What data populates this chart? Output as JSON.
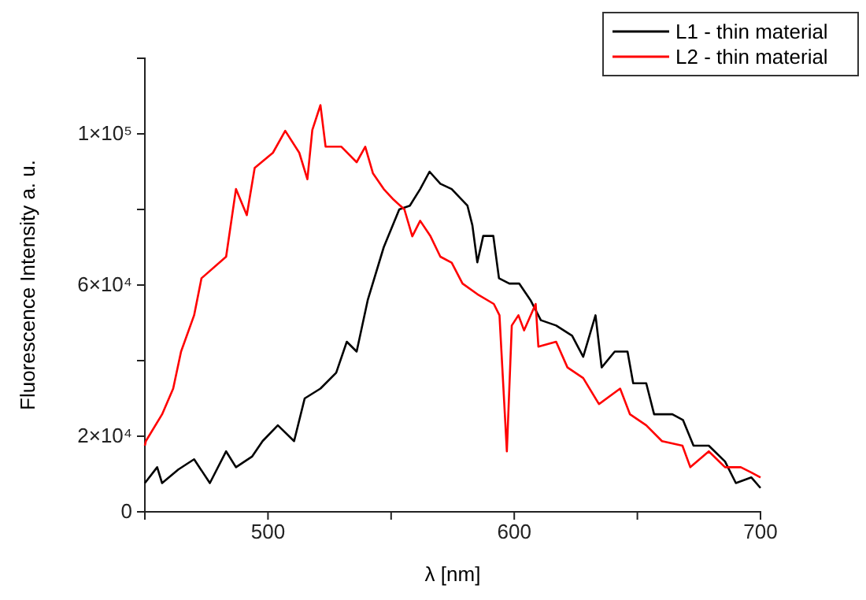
{
  "chart_data": {
    "type": "line",
    "xlabel": "λ [nm]",
    "ylabel": "Fluorescence Intensity a. u.",
    "xlim": [
      450,
      700
    ],
    "ylim": [
      0,
      120000
    ],
    "xticks": [
      500,
      {
        "value": 550,
        "label": null
      },
      600,
      {
        "value": 650,
        "label": null
      },
      700
    ],
    "yticks": [
      0,
      {
        "value": 20000,
        "label": "2×10⁴"
      },
      {
        "value": 40000,
        "label": null
      },
      {
        "value": 60000,
        "label": "6×10⁴"
      },
      {
        "value": 80000,
        "label": null
      },
      {
        "value": 100000,
        "label": "1×10⁵"
      }
    ],
    "grid": false,
    "legend": "top right",
    "marker": "none",
    "line_style": "solid",
    "series": [
      {
        "name": "L1 - thin material",
        "color": "#000000",
        "x": [
          450,
          455,
          457,
          463.6,
          470,
          476.4,
          483,
          487,
          493.5,
          497.8,
          504,
          510.6,
          514.9,
          521.3,
          527.7,
          532,
          536,
          540.5,
          547,
          553.3,
          557.6,
          561.8,
          565.6,
          570,
          574.6,
          581,
          583,
          585,
          587.4,
          591.5,
          593.8,
          598,
          602,
          606.6,
          610.8,
          617,
          623.5,
          628,
          633,
          635.5,
          640.8,
          646,
          648.3,
          653.6,
          656.8,
          664.2,
          668.5,
          672.8,
          679,
          685.6,
          690,
          696.3,
          700
        ],
        "values": [
          7600,
          11800,
          7600,
          11200,
          13900,
          7600,
          16000,
          11800,
          14600,
          18700,
          22900,
          18700,
          30000,
          32600,
          36800,
          45000,
          42400,
          56000,
          70000,
          80000,
          81000,
          85400,
          90000,
          86800,
          85400,
          81000,
          75800,
          66000,
          73000,
          73000,
          61800,
          60400,
          60400,
          56000,
          50700,
          49300,
          46600,
          41000,
          52000,
          38200,
          42400,
          42400,
          34000,
          34000,
          25800,
          25800,
          24300,
          17500,
          17500,
          13300,
          7600,
          9100,
          6300
        ]
      },
      {
        "name": "L2 - thin material",
        "color": "#ff0000",
        "x": [
          450,
          450.4,
          457,
          461.5,
          464.7,
          470,
          473,
          483,
          487,
          491.4,
          494.6,
          502,
          507,
          512.7,
          516,
          518,
          521.3,
          523.4,
          529.8,
          536,
          539.5,
          542.6,
          547,
          551,
          555.4,
          558.6,
          561.8,
          566,
          570,
          574.6,
          579,
          585,
          591.7,
          594,
          597,
          599,
          601.7,
          604,
          608.7,
          609.8,
          617,
          621.6,
          628,
          634.4,
          643,
          647,
          653.6,
          660,
          668.3,
          671.5,
          679,
          685.6,
          692,
          696.3,
          700
        ],
        "values": [
          17500,
          18700,
          25800,
          32600,
          42400,
          52000,
          61800,
          67500,
          85400,
          78500,
          91000,
          95000,
          100800,
          95000,
          88000,
          101000,
          107600,
          96600,
          96600,
          92500,
          96600,
          89600,
          85400,
          82600,
          80000,
          72900,
          77000,
          72900,
          67500,
          65900,
          60400,
          57600,
          55000,
          52000,
          16000,
          49300,
          52000,
          48000,
          55000,
          43700,
          45000,
          38200,
          35400,
          28500,
          32600,
          25800,
          22900,
          18700,
          17500,
          11800,
          16000,
          11800,
          11800,
          10400,
          9100
        ]
      }
    ]
  }
}
